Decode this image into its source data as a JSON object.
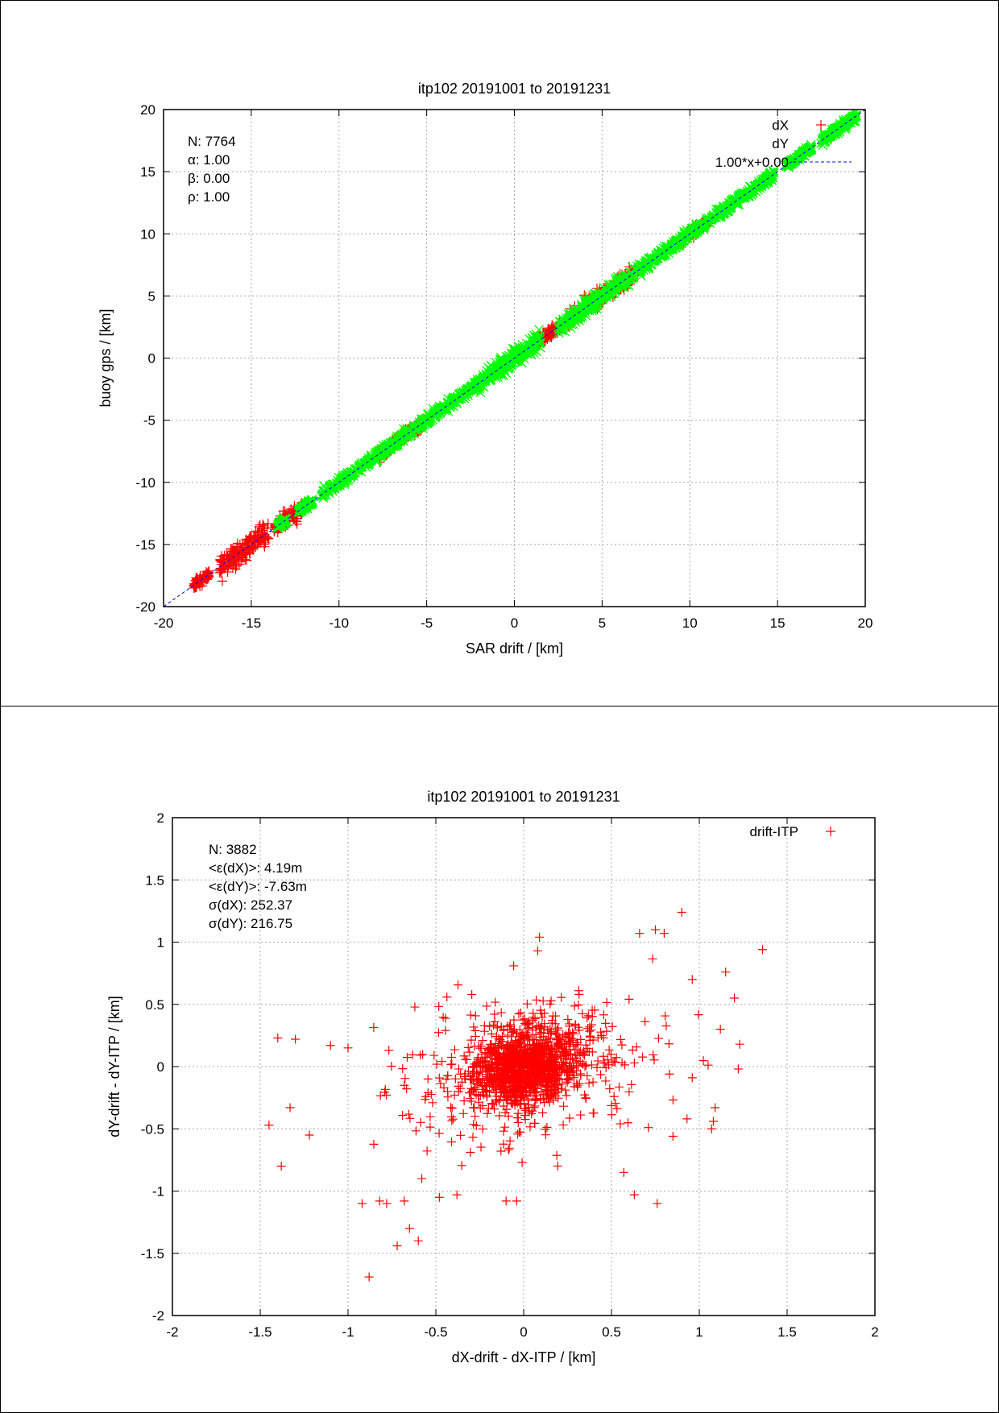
{
  "chart_data": [
    {
      "type": "scatter",
      "title": "itp102 20191001 to 20191231",
      "xlabel": "SAR drift / [km]",
      "ylabel": "buoy gps / [km]",
      "xlim": [
        -20,
        20
      ],
      "ylim": [
        -20,
        20
      ],
      "xticks": [
        "-20",
        "-15",
        "-10",
        "-5",
        "0",
        "5",
        "10",
        "15",
        "20"
      ],
      "yticks": [
        "-20",
        "-15",
        "-10",
        "-5",
        "0",
        "5",
        "10",
        "15",
        "20"
      ],
      "grid": true,
      "legend_position": "top-right",
      "stats": [
        "N: 7764",
        "α: 1.00",
        "β: 0.00",
        "ρ: 1.00"
      ],
      "fit_line": {
        "label": "1.00*x+0.00",
        "slope": 1.0,
        "intercept": 0.0,
        "color": "#0000ff",
        "style": "dashed"
      },
      "series": [
        {
          "name": "dX",
          "marker": "+",
          "color": "#ff0000",
          "count_approx": 3882,
          "clusters": [
            {
              "x_range": [
                -18.3,
                -17.4
              ],
              "spread": 0.3
            },
            {
              "x_range": [
                -16.8,
                -14.0
              ],
              "spread": 0.8
            },
            {
              "x_range": [
                -13.7,
                -12.1
              ],
              "spread": 0.5
            },
            {
              "x_range": [
                -7.8,
                -5.3
              ],
              "spread": 0.4
            },
            {
              "x_range": [
                1.2,
                2.6
              ],
              "spread": 0.4
            },
            {
              "x_range": [
                3.0,
                7.0
              ],
              "spread": 0.6
            },
            {
              "x_range": [
                9.0,
                11.2
              ],
              "spread": 0.3
            }
          ]
        },
        {
          "name": "dY",
          "marker": "x",
          "color": "#00ff00",
          "count_approx": 3882,
          "clusters": [
            {
              "x_range": [
                -13.5,
                -13.0
              ],
              "spread": 0.2
            },
            {
              "x_range": [
                -12.3,
                -11.5
              ],
              "spread": 0.2
            },
            {
              "x_range": [
                -11.0,
                -2.0
              ],
              "spread": 0.3
            },
            {
              "x_range": [
                -2.0,
                1.5
              ],
              "spread": 0.6
            },
            {
              "x_range": [
                2.5,
                6.8
              ],
              "spread": 0.5
            },
            {
              "x_range": [
                7.0,
                14.8
              ],
              "spread": 0.3
            },
            {
              "x_range": [
                15.5,
                17.0
              ],
              "spread": 0.2
            },
            {
              "x_range": [
                17.5,
                19.5
              ],
              "spread": 0.3
            }
          ]
        }
      ]
    },
    {
      "type": "scatter",
      "title": "itp102 20191001 to 20191231",
      "xlabel": "dX-drift - dX-ITP / [km]",
      "ylabel": "dY-drift - dY-ITP / [km]",
      "xlim": [
        -2,
        2
      ],
      "ylim": [
        -2,
        2
      ],
      "xticks": [
        "-2",
        "-1.5",
        "-1",
        "-0.5",
        "0",
        "0.5",
        "1",
        "1.5",
        "2"
      ],
      "yticks": [
        "-2",
        "-1.5",
        "-1",
        "-0.5",
        "0",
        "0.5",
        "1",
        "1.5",
        "2"
      ],
      "grid": true,
      "legend_position": "top-right",
      "stats": [
        "N: 3882",
        "<ε(dX)>:  4.19m",
        "<ε(dY)>: -7.63m",
        "σ(dX):  252.37",
        "σ(dY):  216.75"
      ],
      "series": [
        {
          "name": "drift-ITP",
          "marker": "+",
          "color": "#ff0000",
          "count": 3882,
          "mean": [
            0.00419,
            -0.00763
          ],
          "std": [
            0.25237,
            0.21675
          ],
          "outliers": [
            [
              -1.4,
              0.23
            ],
            [
              -1.3,
              0.22
            ],
            [
              -1.45,
              -0.47
            ],
            [
              -1.38,
              -0.8
            ],
            [
              -1.33,
              -0.33
            ],
            [
              -1.22,
              -0.55
            ],
            [
              -1.1,
              0.17
            ],
            [
              -1.0,
              0.15
            ],
            [
              -0.88,
              -1.69
            ],
            [
              -0.72,
              -1.44
            ],
            [
              -0.65,
              -1.3
            ],
            [
              -0.6,
              -1.4
            ],
            [
              -0.92,
              -1.1
            ],
            [
              -0.82,
              -1.08
            ],
            [
              -0.78,
              -1.1
            ],
            [
              -0.68,
              -1.08
            ],
            [
              -0.58,
              -0.9
            ],
            [
              -0.48,
              -1.05
            ],
            [
              -0.38,
              -1.03
            ],
            [
              -0.1,
              -1.08
            ],
            [
              -0.04,
              -1.08
            ],
            [
              0.09,
              1.04
            ],
            [
              0.08,
              0.93
            ],
            [
              0.9,
              1.24
            ],
            [
              1.36,
              0.94
            ],
            [
              0.75,
              1.1
            ],
            [
              0.8,
              1.07
            ],
            [
              0.66,
              1.07
            ],
            [
              0.96,
              0.7
            ],
            [
              1.15,
              0.76
            ],
            [
              1.2,
              0.55
            ],
            [
              1.23,
              0.18
            ],
            [
              1.12,
              0.3
            ],
            [
              1.08,
              -0.44
            ],
            [
              1.09,
              -0.33
            ],
            [
              1.07,
              -0.5
            ],
            [
              0.85,
              -0.56
            ],
            [
              0.76,
              -1.1
            ],
            [
              0.63,
              -1.03
            ],
            [
              0.57,
              -0.85
            ],
            [
              0.55,
              -0.46
            ],
            [
              0.93,
              -0.42
            ],
            [
              0.96,
              -0.09
            ],
            [
              0.83,
              -0.06
            ],
            [
              0.71,
              -0.49
            ]
          ]
        }
      ]
    }
  ]
}
